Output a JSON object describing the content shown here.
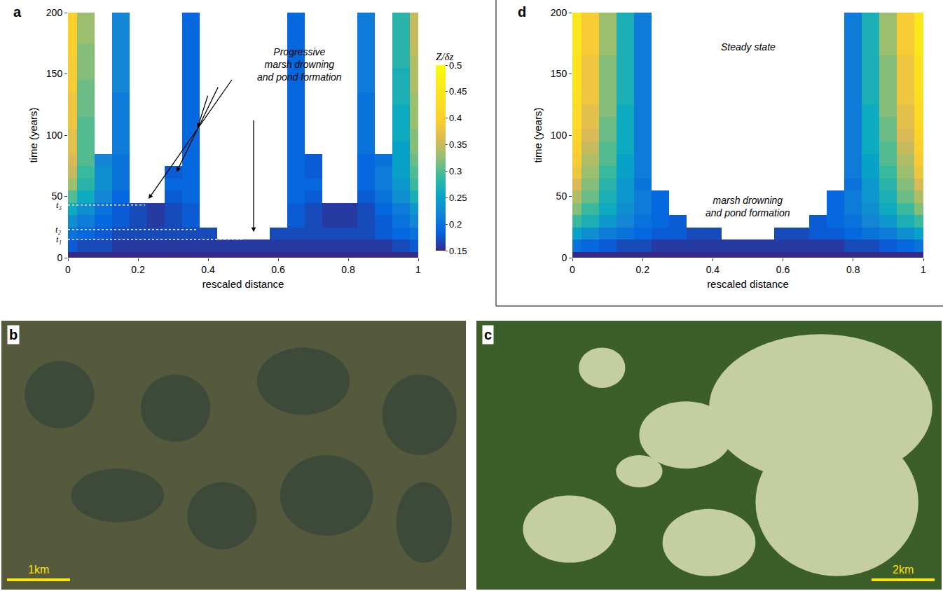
{
  "chart_data": [
    {
      "type": "heatmap",
      "panel": "a",
      "xlabel": "rescaled distance",
      "ylabel": "time (years)",
      "xlim": [
        0,
        1
      ],
      "ylim": [
        0,
        200
      ],
      "xticks": [
        0,
        0.2,
        0.4,
        0.6,
        0.8,
        1
      ],
      "yticks": [
        0,
        50,
        100,
        150,
        200
      ],
      "x": [
        0,
        0.05,
        0.1,
        0.15,
        0.2,
        0.25,
        0.3,
        0.35,
        0.4,
        0.45,
        0.5,
        0.55,
        0.6,
        0.65,
        0.7,
        0.75,
        0.8,
        0.85,
        0.9,
        0.95,
        1
      ],
      "y": [
        0,
        10,
        20,
        30,
        40,
        50,
        60,
        70,
        80,
        90,
        100,
        110,
        120,
        130,
        140,
        150,
        160,
        170,
        180,
        190,
        200
      ],
      "z": [
        [
          0.15,
          0.15,
          0.15,
          0.15,
          0.15,
          0.15,
          0.15,
          0.15,
          0.15,
          0.15,
          0.15,
          0.15,
          0.15,
          0.15,
          0.15,
          0.15,
          0.15,
          0.15,
          0.15,
          0.15,
          0.15
        ],
        [
          0.18,
          0.17,
          0.17,
          0.16,
          0.16,
          0.16,
          0.16,
          0.16,
          0.16,
          0.16,
          0.16,
          0.16,
          0.16,
          0.16,
          0.16,
          0.16,
          0.16,
          0.16,
          0.16,
          0.17,
          0.18
        ],
        [
          0.2,
          0.19,
          0.18,
          0.17,
          0.17,
          0.17,
          0.17,
          0.17,
          0.17,
          null,
          null,
          null,
          0.17,
          0.17,
          0.17,
          0.17,
          0.17,
          0.17,
          0.18,
          0.19,
          0.2
        ],
        [
          0.23,
          0.21,
          0.19,
          0.18,
          0.17,
          0.16,
          0.17,
          0.18,
          null,
          null,
          null,
          null,
          null,
          0.18,
          0.17,
          0.16,
          0.16,
          0.17,
          0.18,
          0.2,
          0.22
        ],
        [
          0.26,
          0.23,
          0.2,
          0.18,
          0.17,
          0.16,
          0.17,
          0.18,
          null,
          null,
          null,
          null,
          null,
          0.18,
          0.17,
          0.16,
          0.16,
          0.17,
          0.19,
          0.21,
          0.24
        ],
        [
          0.3,
          0.26,
          0.22,
          0.19,
          null,
          null,
          0.18,
          0.19,
          null,
          null,
          null,
          null,
          null,
          0.19,
          0.18,
          null,
          null,
          0.18,
          0.2,
          0.23,
          0.27
        ],
        [
          0.33,
          0.28,
          0.23,
          0.2,
          null,
          null,
          0.19,
          0.19,
          null,
          null,
          null,
          null,
          null,
          0.19,
          0.19,
          null,
          null,
          0.19,
          0.21,
          0.24,
          0.29
        ],
        [
          0.35,
          0.29,
          0.23,
          0.2,
          null,
          null,
          0.18,
          0.19,
          null,
          null,
          null,
          null,
          null,
          0.19,
          0.18,
          null,
          null,
          0.19,
          0.21,
          0.25,
          0.3
        ],
        [
          0.36,
          0.3,
          0.22,
          0.2,
          null,
          null,
          null,
          0.19,
          null,
          null,
          null,
          null,
          null,
          0.19,
          0.18,
          null,
          null,
          0.19,
          0.2,
          0.25,
          0.31
        ],
        [
          0.37,
          0.3,
          null,
          0.21,
          null,
          null,
          null,
          0.19,
          null,
          null,
          null,
          null,
          null,
          0.19,
          null,
          null,
          null,
          0.2,
          null,
          0.25,
          0.32
        ],
        [
          0.37,
          0.3,
          null,
          0.21,
          null,
          null,
          null,
          0.19,
          null,
          null,
          null,
          null,
          null,
          0.19,
          null,
          null,
          null,
          0.2,
          null,
          0.26,
          0.32
        ],
        [
          0.38,
          0.3,
          null,
          0.21,
          null,
          null,
          null,
          0.19,
          null,
          null,
          null,
          null,
          null,
          0.19,
          null,
          null,
          null,
          0.2,
          null,
          0.26,
          0.33
        ],
        [
          0.38,
          0.31,
          null,
          0.21,
          null,
          null,
          null,
          0.19,
          null,
          null,
          null,
          null,
          null,
          0.19,
          null,
          null,
          null,
          0.2,
          null,
          0.26,
          0.33
        ],
        [
          0.38,
          0.31,
          null,
          0.21,
          null,
          null,
          null,
          0.19,
          null,
          null,
          null,
          null,
          null,
          0.19,
          null,
          null,
          null,
          0.2,
          null,
          0.27,
          0.33
        ],
        [
          0.39,
          0.31,
          null,
          0.22,
          null,
          null,
          null,
          0.19,
          null,
          null,
          null,
          null,
          null,
          0.19,
          null,
          null,
          null,
          0.21,
          null,
          0.27,
          0.34
        ],
        [
          0.39,
          0.32,
          null,
          0.22,
          null,
          null,
          null,
          0.19,
          null,
          null,
          null,
          null,
          null,
          0.19,
          null,
          null,
          null,
          0.21,
          null,
          0.27,
          0.34
        ],
        [
          0.39,
          0.32,
          null,
          0.22,
          null,
          null,
          null,
          0.19,
          null,
          null,
          null,
          null,
          null,
          0.19,
          null,
          null,
          null,
          0.21,
          null,
          0.28,
          0.34
        ],
        [
          0.4,
          0.32,
          null,
          0.22,
          null,
          null,
          null,
          0.19,
          null,
          null,
          null,
          null,
          null,
          0.19,
          null,
          null,
          null,
          0.21,
          null,
          0.28,
          0.35
        ],
        [
          0.4,
          0.33,
          null,
          0.22,
          null,
          null,
          null,
          0.19,
          null,
          null,
          null,
          null,
          null,
          0.19,
          null,
          null,
          null,
          0.21,
          null,
          0.28,
          0.35
        ],
        [
          0.4,
          0.33,
          null,
          0.22,
          null,
          null,
          null,
          0.19,
          null,
          null,
          null,
          null,
          null,
          0.19,
          null,
          null,
          null,
          0.21,
          null,
          0.28,
          0.35
        ],
        [
          0.4,
          0.33,
          null,
          0.22,
          null,
          null,
          null,
          0.19,
          null,
          null,
          null,
          null,
          null,
          0.19,
          null,
          null,
          null,
          0.21,
          null,
          0.28,
          0.35
        ]
      ],
      "colorbar": {
        "title": "Z/δz",
        "range": [
          0.15,
          0.5
        ],
        "ticks": [
          0.15,
          0.2,
          0.25,
          0.3,
          0.35,
          0.4,
          0.45,
          0.5
        ]
      },
      "time_markers": [
        {
          "label": "t₁",
          "value": 15,
          "x_end": 0.5
        },
        {
          "label": "t₂",
          "value": 23,
          "x_end": 0.37
        },
        {
          "label": "t₃",
          "value": 43,
          "x_end": 0.22
        }
      ],
      "annotations": [
        {
          "text": "Progressive\nmarsh drowning\nand pond formation",
          "x": 0.66,
          "y": 158
        }
      ]
    },
    {
      "type": "heatmap",
      "panel": "d",
      "xlabel": "rescaled distance",
      "ylabel": "time (years)",
      "xlim": [
        0,
        1
      ],
      "ylim": [
        0,
        200
      ],
      "xticks": [
        0,
        0.2,
        0.4,
        0.6,
        0.8,
        1
      ],
      "yticks": [
        0,
        50,
        100,
        150,
        200
      ],
      "x": [
        0,
        0.05,
        0.1,
        0.15,
        0.2,
        0.25,
        0.3,
        0.35,
        0.4,
        0.45,
        0.5,
        0.55,
        0.6,
        0.65,
        0.7,
        0.75,
        0.8,
        0.85,
        0.9,
        0.95,
        1
      ],
      "y": [
        0,
        10,
        20,
        30,
        40,
        50,
        60,
        70,
        80,
        90,
        100,
        110,
        120,
        130,
        140,
        150,
        160,
        170,
        180,
        190,
        200
      ],
      "z": [
        [
          0.15,
          0.15,
          0.15,
          0.15,
          0.15,
          0.15,
          0.15,
          0.15,
          0.15,
          0.15,
          0.15,
          0.15,
          0.15,
          0.15,
          0.15,
          0.15,
          0.15,
          0.15,
          0.15,
          0.15,
          0.15
        ],
        [
          0.2,
          0.19,
          0.18,
          0.17,
          0.17,
          0.16,
          0.16,
          0.16,
          0.16,
          0.16,
          0.16,
          0.16,
          0.16,
          0.16,
          0.16,
          0.16,
          0.17,
          0.17,
          0.18,
          0.19,
          0.2
        ],
        [
          0.25,
          0.23,
          0.21,
          0.2,
          0.19,
          0.18,
          0.18,
          0.17,
          0.17,
          null,
          null,
          null,
          0.17,
          0.17,
          0.18,
          0.18,
          0.19,
          0.2,
          0.21,
          0.23,
          0.25
        ],
        [
          0.29,
          0.27,
          0.24,
          0.22,
          0.2,
          0.19,
          0.18,
          null,
          null,
          null,
          null,
          null,
          null,
          null,
          0.18,
          0.19,
          0.2,
          0.22,
          0.24,
          0.27,
          0.29
        ],
        [
          0.32,
          0.29,
          0.26,
          0.23,
          0.21,
          0.19,
          null,
          null,
          null,
          null,
          null,
          null,
          null,
          null,
          null,
          0.19,
          0.21,
          0.23,
          0.26,
          0.29,
          0.32
        ],
        [
          0.34,
          0.31,
          0.27,
          0.24,
          0.21,
          0.19,
          null,
          null,
          null,
          null,
          null,
          null,
          null,
          null,
          null,
          0.19,
          0.21,
          0.24,
          0.27,
          0.31,
          0.34
        ],
        [
          0.36,
          0.32,
          0.28,
          0.24,
          0.2,
          null,
          null,
          null,
          null,
          null,
          null,
          null,
          null,
          null,
          null,
          null,
          0.2,
          0.24,
          0.28,
          0.32,
          0.36
        ],
        [
          0.38,
          0.33,
          0.29,
          0.25,
          0.21,
          null,
          null,
          null,
          null,
          null,
          null,
          null,
          null,
          null,
          null,
          null,
          0.21,
          0.25,
          0.29,
          0.33,
          0.38
        ],
        [
          0.39,
          0.34,
          0.3,
          0.25,
          0.21,
          null,
          null,
          null,
          null,
          null,
          null,
          null,
          null,
          null,
          null,
          null,
          0.21,
          0.25,
          0.3,
          0.34,
          0.39
        ],
        [
          0.4,
          0.35,
          0.3,
          0.26,
          0.21,
          null,
          null,
          null,
          null,
          null,
          null,
          null,
          null,
          null,
          null,
          null,
          0.21,
          0.26,
          0.3,
          0.35,
          0.4
        ],
        [
          0.41,
          0.36,
          0.31,
          0.26,
          0.21,
          null,
          null,
          null,
          null,
          null,
          null,
          null,
          null,
          null,
          null,
          null,
          0.21,
          0.26,
          0.31,
          0.36,
          0.41
        ],
        [
          0.42,
          0.37,
          0.31,
          0.26,
          0.21,
          null,
          null,
          null,
          null,
          null,
          null,
          null,
          null,
          null,
          null,
          null,
          0.21,
          0.26,
          0.31,
          0.37,
          0.42
        ],
        [
          0.42,
          0.37,
          0.32,
          0.26,
          0.21,
          null,
          null,
          null,
          null,
          null,
          null,
          null,
          null,
          null,
          null,
          null,
          0.21,
          0.26,
          0.32,
          0.37,
          0.42
        ],
        [
          0.43,
          0.38,
          0.32,
          0.27,
          0.21,
          null,
          null,
          null,
          null,
          null,
          null,
          null,
          null,
          null,
          null,
          null,
          0.21,
          0.27,
          0.32,
          0.38,
          0.43
        ],
        [
          0.44,
          0.38,
          0.32,
          0.27,
          0.21,
          null,
          null,
          null,
          null,
          null,
          null,
          null,
          null,
          null,
          null,
          null,
          0.21,
          0.27,
          0.32,
          0.38,
          0.44
        ],
        [
          0.44,
          0.38,
          0.32,
          0.27,
          0.21,
          null,
          null,
          null,
          null,
          null,
          null,
          null,
          null,
          null,
          null,
          null,
          0.21,
          0.27,
          0.32,
          0.38,
          0.44
        ],
        [
          0.44,
          0.38,
          0.32,
          0.27,
          0.21,
          null,
          null,
          null,
          null,
          null,
          null,
          null,
          null,
          null,
          null,
          null,
          0.21,
          0.27,
          0.32,
          0.38,
          0.44
        ],
        [
          0.45,
          0.39,
          0.33,
          0.27,
          0.21,
          null,
          null,
          null,
          null,
          null,
          null,
          null,
          null,
          null,
          null,
          null,
          0.21,
          0.27,
          0.33,
          0.39,
          0.45
        ],
        [
          0.45,
          0.39,
          0.33,
          0.27,
          0.21,
          null,
          null,
          null,
          null,
          null,
          null,
          null,
          null,
          null,
          null,
          null,
          0.21,
          0.27,
          0.33,
          0.39,
          0.45
        ],
        [
          0.45,
          0.39,
          0.33,
          0.27,
          0.21,
          null,
          null,
          null,
          null,
          null,
          null,
          null,
          null,
          null,
          null,
          null,
          0.21,
          0.27,
          0.33,
          0.39,
          0.45
        ],
        [
          0.45,
          0.39,
          0.33,
          0.27,
          0.21,
          null,
          null,
          null,
          null,
          null,
          null,
          null,
          null,
          null,
          null,
          null,
          0.21,
          0.27,
          0.33,
          0.39,
          0.45
        ]
      ],
      "annotations": [
        {
          "text": "Steady state",
          "x": 0.5,
          "y": 172
        },
        {
          "text": "marsh drowning\nand pond formation",
          "x": 0.5,
          "y": 42
        }
      ]
    }
  ],
  "images": [
    {
      "panel": "b",
      "scale_bar": "1km"
    },
    {
      "panel": "c",
      "scale_bar": "2km"
    }
  ]
}
